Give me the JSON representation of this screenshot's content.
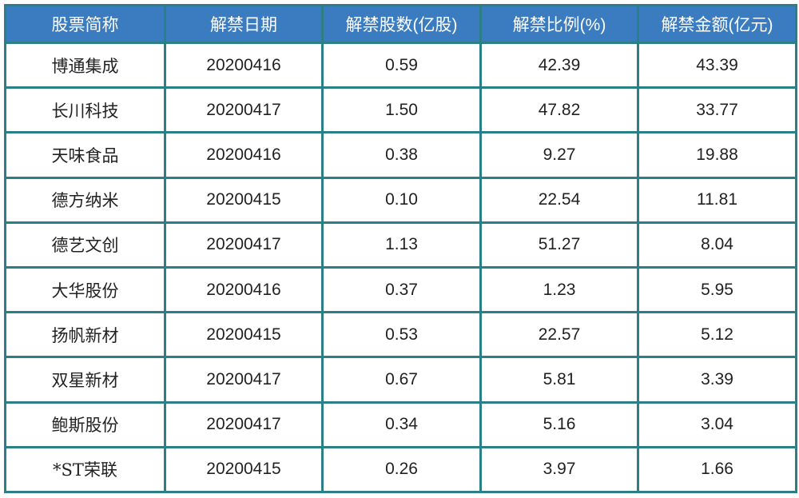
{
  "table": {
    "header": [
      "股票简称",
      "解禁日期",
      "解禁股数(亿股)",
      "解禁比例(%)",
      "解禁金额(亿元)"
    ],
    "rows": [
      [
        "博通集成",
        "20200416",
        "0.59",
        "42.39",
        "43.39"
      ],
      [
        "长川科技",
        "20200417",
        "1.50",
        "47.82",
        "33.77"
      ],
      [
        "天味食品",
        "20200416",
        "0.38",
        "9.27",
        "19.88"
      ],
      [
        "德方纳米",
        "20200415",
        "0.10",
        "22.54",
        "11.81"
      ],
      [
        "德艺文创",
        "20200417",
        "1.13",
        "51.27",
        "8.04"
      ],
      [
        "大华股份",
        "20200416",
        "0.37",
        "1.23",
        "5.95"
      ],
      [
        "扬帆新材",
        "20200415",
        "0.53",
        "22.57",
        "5.12"
      ],
      [
        "双星新材",
        "20200417",
        "0.67",
        "5.81",
        "3.39"
      ],
      [
        "鲍斯股份",
        "20200417",
        "0.34",
        "5.16",
        "3.04"
      ],
      [
        "*ST荣联",
        "20200415",
        "0.26",
        "3.97",
        "1.66"
      ]
    ]
  }
}
